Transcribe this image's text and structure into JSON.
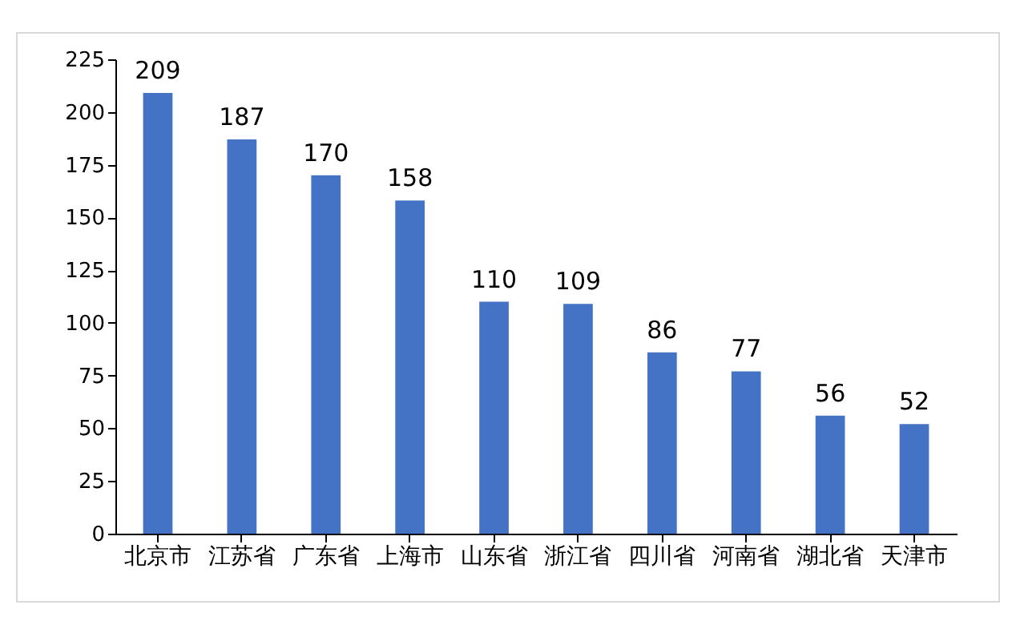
{
  "chart_data": {
    "type": "bar",
    "categories": [
      "北京市",
      "江苏省",
      "广东省",
      "上海市",
      "山东省",
      "浙江省",
      "四川省",
      "河南省",
      "湖北省",
      "天津市"
    ],
    "values": [
      209,
      187,
      170,
      158,
      110,
      109,
      86,
      77,
      56,
      52
    ],
    "color": "#4472c4",
    "ylim": [
      0,
      225
    ],
    "yticks": [
      0,
      25,
      50,
      75,
      100,
      125,
      150,
      175,
      200,
      225
    ],
    "data_labels": true
  }
}
